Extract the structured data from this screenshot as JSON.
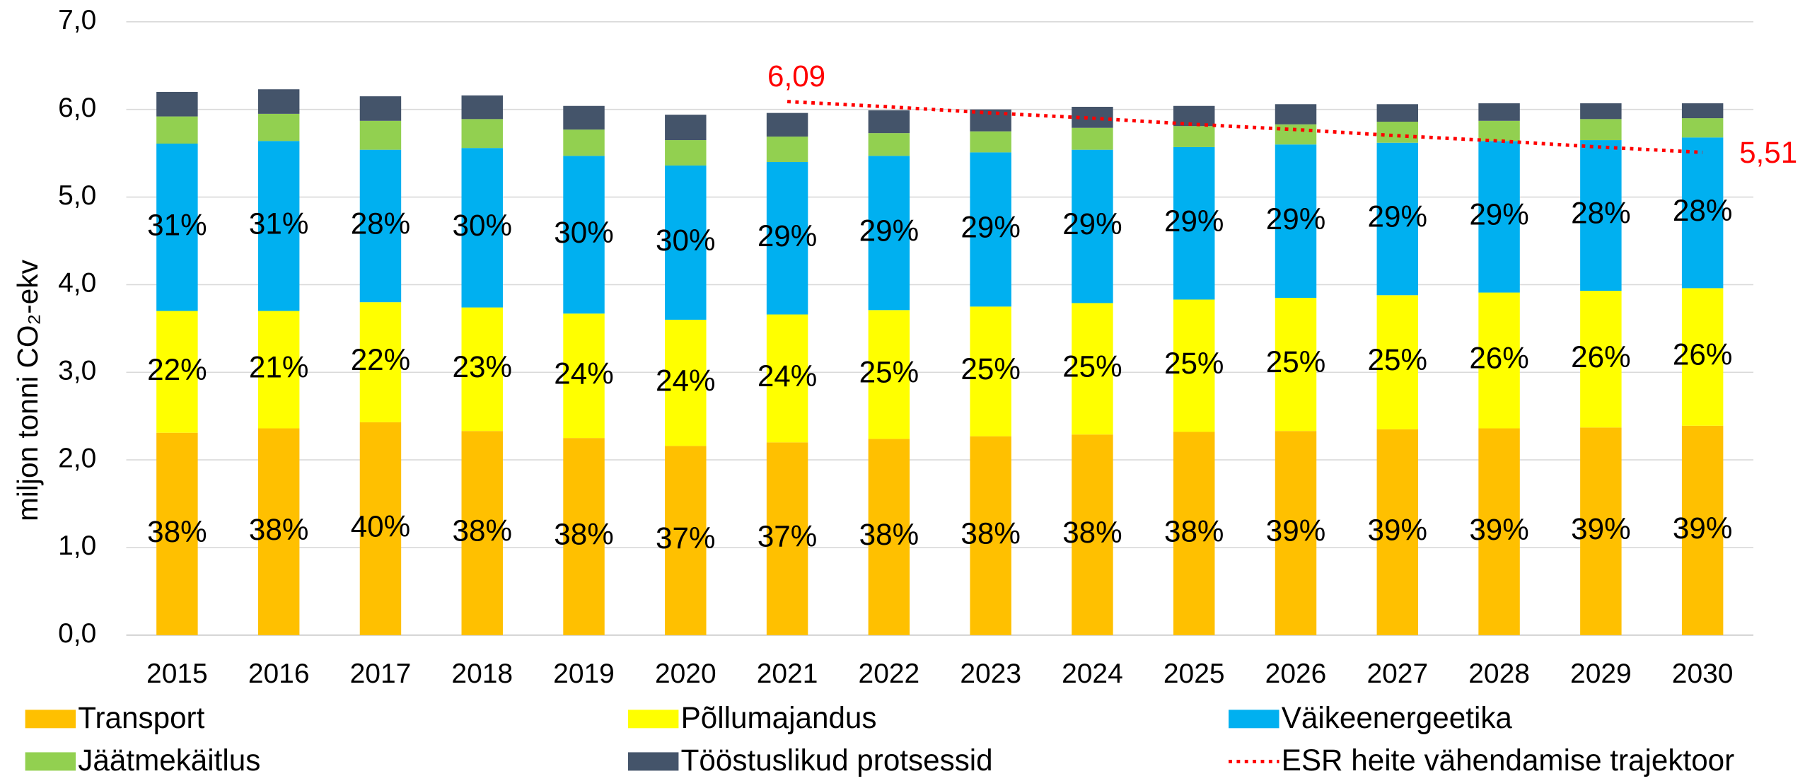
{
  "chart_data": {
    "type": "bar",
    "stacked": true,
    "y_label": "miljon tonni CO₂-ekv",
    "categories": [
      "2015",
      "2016",
      "2017",
      "2018",
      "2019",
      "2020",
      "2021",
      "2022",
      "2023",
      "2024",
      "2025",
      "2026",
      "2027",
      "2028",
      "2029",
      "2030"
    ],
    "ylim": [
      0,
      7
    ],
    "yticks": [
      {
        "value": 0,
        "label": "0,0"
      },
      {
        "value": 1,
        "label": "1,0"
      },
      {
        "value": 2,
        "label": "2,0"
      },
      {
        "value": 3,
        "label": "3,0"
      },
      {
        "value": 4,
        "label": "4,0"
      },
      {
        "value": 5,
        "label": "5,0"
      },
      {
        "value": 6,
        "label": "6,0"
      },
      {
        "value": 7,
        "label": "7,0"
      }
    ],
    "grid": true,
    "legend": "bottom",
    "series": [
      {
        "name": "Transport",
        "color": "#ffc000",
        "values": [
          2.31,
          2.36,
          2.43,
          2.33,
          2.25,
          2.16,
          2.2,
          2.24,
          2.27,
          2.29,
          2.32,
          2.33,
          2.35,
          2.36,
          2.37,
          2.39
        ],
        "value_labels": [
          "38%",
          "38%",
          "40%",
          "38%",
          "38%",
          "37%",
          "37%",
          "38%",
          "38%",
          "38%",
          "38%",
          "39%",
          "39%",
          "39%",
          "39%",
          "39%"
        ]
      },
      {
        "name": "Põllumajandus",
        "color": "#ffff00",
        "values": [
          1.39,
          1.34,
          1.37,
          1.41,
          1.42,
          1.44,
          1.46,
          1.47,
          1.48,
          1.5,
          1.51,
          1.52,
          1.53,
          1.55,
          1.56,
          1.57
        ],
        "value_labels": [
          "22%",
          "21%",
          "22%",
          "23%",
          "24%",
          "24%",
          "24%",
          "25%",
          "25%",
          "25%",
          "25%",
          "25%",
          "25%",
          "26%",
          "26%",
          "26%"
        ]
      },
      {
        "name": "Väikeenergeetika",
        "color": "#00b0f0",
        "values": [
          1.91,
          1.94,
          1.74,
          1.82,
          1.8,
          1.76,
          1.74,
          1.76,
          1.76,
          1.75,
          1.74,
          1.75,
          1.74,
          1.73,
          1.72,
          1.72
        ],
        "value_labels": [
          "31%",
          "31%",
          "28%",
          "30%",
          "30%",
          "30%",
          "29%",
          "29%",
          "29%",
          "29%",
          "29%",
          "29%",
          "29%",
          "29%",
          "28%",
          "28%"
        ]
      },
      {
        "name": "Jäätmekäitlus",
        "color": "#92d050",
        "values": [
          0.31,
          0.31,
          0.33,
          0.33,
          0.3,
          0.29,
          0.29,
          0.26,
          0.24,
          0.25,
          0.24,
          0.23,
          0.24,
          0.23,
          0.24,
          0.22
        ]
      },
      {
        "name": "Tööstuslikud protsessid",
        "color": "#44546a",
        "values": [
          0.28,
          0.28,
          0.28,
          0.27,
          0.27,
          0.29,
          0.27,
          0.26,
          0.25,
          0.24,
          0.23,
          0.23,
          0.2,
          0.2,
          0.18,
          0.17
        ]
      },
      {
        "name": "ESR heite vähendamise trajektoor",
        "type": "line",
        "color": "#ff0000",
        "dashed": true,
        "values": [
          null,
          null,
          null,
          null,
          null,
          null,
          6.09,
          6.03,
          5.96,
          5.9,
          5.83,
          5.77,
          5.7,
          5.64,
          5.57,
          5.51
        ],
        "value_labels": [
          null,
          null,
          null,
          null,
          null,
          null,
          "6,09",
          null,
          null,
          null,
          null,
          null,
          null,
          null,
          null,
          "5,51"
        ]
      }
    ]
  }
}
